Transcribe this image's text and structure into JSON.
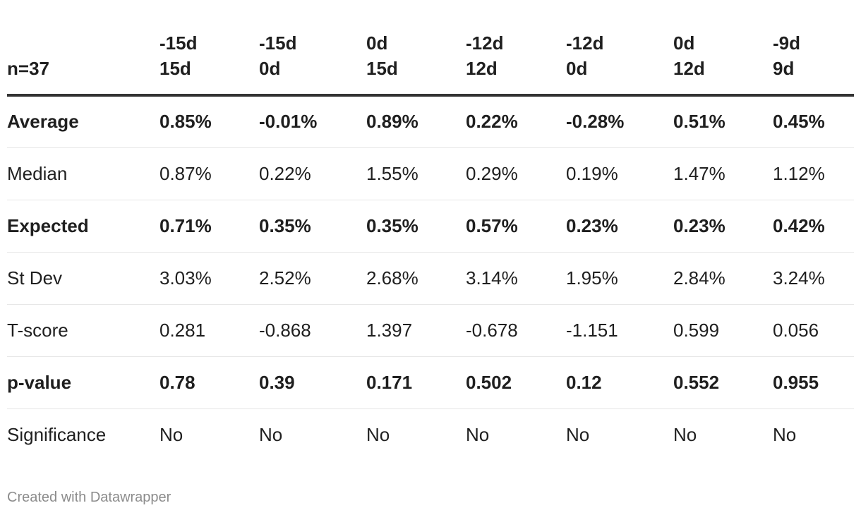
{
  "chart_data": {
    "type": "table",
    "corner_label": "n=37",
    "columns": [
      {
        "line1": "-15d",
        "line2": "15d"
      },
      {
        "line1": "-15d",
        "line2": "0d"
      },
      {
        "line1": "0d",
        "line2": "15d"
      },
      {
        "line1": "-12d",
        "line2": "12d"
      },
      {
        "line1": "-12d",
        "line2": "0d"
      },
      {
        "line1": "0d",
        "line2": "12d"
      },
      {
        "line1": "-9d",
        "line2": "9d"
      }
    ],
    "rows": [
      {
        "label": "Average",
        "bold": true,
        "values": [
          "0.85%",
          "-0.01%",
          "0.89%",
          "0.22%",
          "-0.28%",
          "0.51%",
          "0.45%"
        ]
      },
      {
        "label": "Median",
        "bold": false,
        "values": [
          "0.87%",
          "0.22%",
          "1.55%",
          "0.29%",
          "0.19%",
          "1.47%",
          "1.12%"
        ]
      },
      {
        "label": "Expected",
        "bold": true,
        "values": [
          "0.71%",
          "0.35%",
          "0.35%",
          "0.57%",
          "0.23%",
          "0.23%",
          "0.42%"
        ]
      },
      {
        "label": "St Dev",
        "bold": false,
        "values": [
          "3.03%",
          "2.52%",
          "2.68%",
          "3.14%",
          "1.95%",
          "2.84%",
          "3.24%"
        ]
      },
      {
        "label": "T-score",
        "bold": false,
        "values": [
          "0.281",
          "-0.868",
          "1.397",
          "-0.678",
          "-1.151",
          "0.599",
          "0.056"
        ]
      },
      {
        "label": "p-value",
        "bold": true,
        "values": [
          "0.78",
          "0.39",
          "0.171",
          "0.502",
          "0.12",
          "0.552",
          "0.955"
        ]
      },
      {
        "label": "Significance",
        "bold": false,
        "values": [
          "No",
          "No",
          "No",
          "No",
          "No",
          "No",
          "No"
        ]
      }
    ]
  },
  "footer": {
    "credit": "Created with Datawrapper"
  }
}
